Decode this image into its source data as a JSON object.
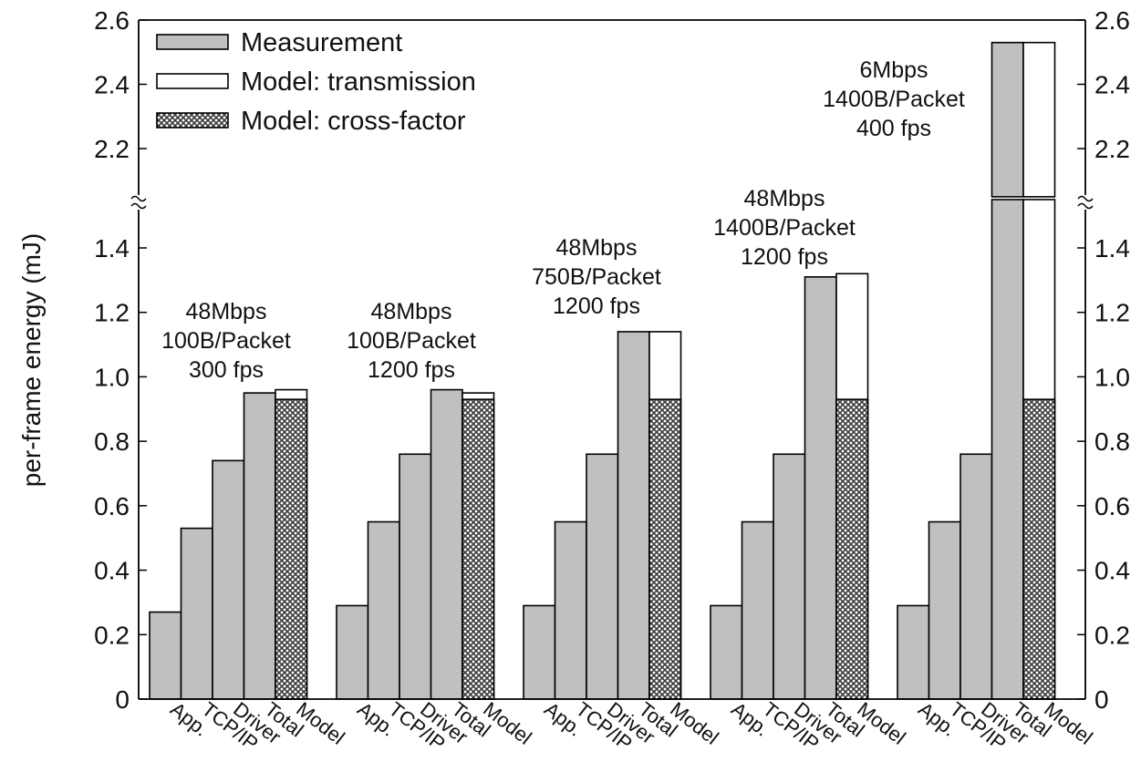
{
  "chart_data": {
    "type": "bar",
    "ylabel": "per-frame energy (mJ)",
    "y_ticks_lower": [
      "0",
      "0.2",
      "0.4",
      "0.6",
      "0.8",
      "1.0",
      "1.2",
      "1.4"
    ],
    "y_ticks_upper": [
      "2.2",
      "2.4",
      "2.6"
    ],
    "y_break": {
      "lower_range": [
        0,
        1.55
      ],
      "upper_range": [
        2.05,
        2.6
      ]
    },
    "categories": [
      "App.",
      "TCP/IP",
      "Driver",
      "Total",
      "Model"
    ],
    "legend": {
      "placement": "top-left",
      "entries": [
        {
          "label": "Measurement",
          "style": "gray"
        },
        {
          "label": "Model: transmission",
          "style": "white"
        },
        {
          "label": "Model: cross-factor",
          "style": "hatched"
        }
      ]
    },
    "groups": [
      {
        "label_lines": [
          "48Mbps",
          "100B/Packet",
          "300 fps"
        ],
        "measurement": [
          0.27,
          0.53,
          0.74,
          0.95
        ],
        "model_cross_factor": 0.93,
        "model_total": 0.96
      },
      {
        "label_lines": [
          "48Mbps",
          "100B/Packet",
          "1200 fps"
        ],
        "measurement": [
          0.29,
          0.55,
          0.76,
          0.96
        ],
        "model_cross_factor": 0.93,
        "model_total": 0.95
      },
      {
        "label_lines": [
          "48Mbps",
          "750B/Packet",
          "1200 fps"
        ],
        "measurement": [
          0.29,
          0.55,
          0.76,
          1.14
        ],
        "model_cross_factor": 0.93,
        "model_total": 1.14
      },
      {
        "label_lines": [
          "48Mbps",
          "1400B/Packet",
          "1200 fps"
        ],
        "measurement": [
          0.29,
          0.55,
          0.76,
          1.31
        ],
        "model_cross_factor": 0.93,
        "model_total": 1.32
      },
      {
        "label_lines": [
          "6Mbps",
          "1400B/Packet",
          "400 fps"
        ],
        "measurement": [
          0.29,
          0.55,
          0.76,
          2.53
        ],
        "model_cross_factor": 0.93,
        "model_total": 2.53
      }
    ],
    "colors": {
      "measurement": "#c0c0c0",
      "transmission": "#ffffff",
      "cross_factor": "#9a9a9a",
      "outline": "#000000"
    }
  }
}
